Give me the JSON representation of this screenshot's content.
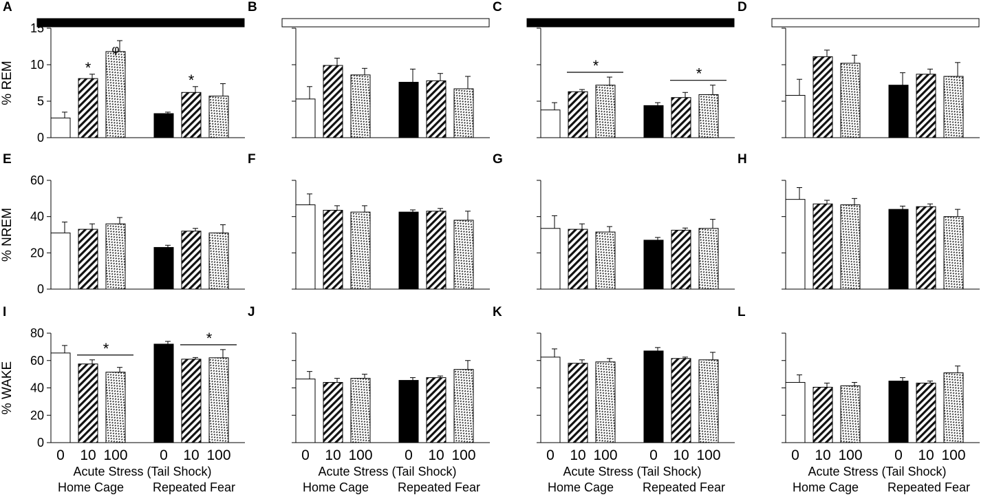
{
  "chart_data": {
    "type": "bar",
    "groups": [
      "0",
      "10",
      "100",
      "0",
      "10",
      "100"
    ],
    "group_patterns": [
      "open",
      "hatch",
      "dots",
      "solid",
      "hatch",
      "dots"
    ],
    "x_labels": {
      "doses": [
        "0",
        "10",
        "100",
        "0",
        "10",
        "100"
      ],
      "line1": "Acute Stress (Tail Shock)",
      "line2_left": "Home Cage",
      "line2_right": "Repeated Fear"
    },
    "rows": [
      {
        "ylabel": "% REM",
        "ylim": [
          0,
          15
        ],
        "yticks": [
          "0",
          "5",
          "10",
          "15"
        ]
      },
      {
        "ylabel": "% NREM",
        "ylim": [
          0,
          60
        ],
        "yticks": [
          "0",
          "20",
          "40",
          "60"
        ]
      },
      {
        "ylabel": "% WAKE",
        "ylim": [
          0,
          80
        ],
        "yticks": [
          "0",
          "20",
          "40",
          "60",
          "80"
        ]
      }
    ],
    "panels": [
      {
        "label": "A",
        "row": 0,
        "col": 0,
        "top_bar": "black",
        "values": [
          2.7,
          8.1,
          11.8,
          3.3,
          6.2,
          5.7
        ],
        "errors": [
          0.8,
          0.6,
          1.5,
          0.2,
          0.8,
          1.7
        ],
        "annotations": [
          {
            "type": "star",
            "text": "*",
            "bar": 1
          },
          {
            "type": "star",
            "text": "*",
            "bar": 4
          },
          {
            "type": "phi",
            "text": "φ",
            "bar": 2
          }
        ]
      },
      {
        "label": "B",
        "row": 0,
        "col": 1,
        "top_bar": "white",
        "values": [
          5.3,
          9.9,
          8.6,
          7.6,
          7.8,
          6.7
        ],
        "errors": [
          1.7,
          1.0,
          0.9,
          1.8,
          1.0,
          1.7
        ],
        "annotations": []
      },
      {
        "label": "C",
        "row": 0,
        "col": 2,
        "top_bar": "black",
        "values": [
          3.8,
          6.3,
          7.2,
          4.4,
          5.5,
          5.9
        ],
        "errors": [
          1.0,
          0.3,
          1.1,
          0.4,
          0.7,
          1.3
        ],
        "annotations": [
          {
            "type": "line",
            "text": "*",
            "from": 1,
            "to": 2
          },
          {
            "type": "line",
            "text": "*",
            "from": 4,
            "to": 5
          }
        ]
      },
      {
        "label": "D",
        "row": 0,
        "col": 3,
        "top_bar": "white",
        "values": [
          5.8,
          11.1,
          10.2,
          7.2,
          8.7,
          8.4
        ],
        "errors": [
          2.2,
          0.9,
          1.1,
          1.7,
          0.7,
          1.9
        ],
        "annotations": []
      },
      {
        "label": "E",
        "row": 1,
        "col": 0,
        "values": [
          31,
          33,
          36,
          23,
          32,
          31
        ],
        "errors": [
          6,
          3,
          3.5,
          1.2,
          1.5,
          4.5
        ],
        "annotations": []
      },
      {
        "label": "F",
        "row": 1,
        "col": 1,
        "values": [
          46.5,
          43.5,
          42.5,
          42.5,
          43,
          38
        ],
        "errors": [
          6,
          2.5,
          3.5,
          1.2,
          1.5,
          5
        ],
        "annotations": []
      },
      {
        "label": "G",
        "row": 1,
        "col": 2,
        "values": [
          33.5,
          33,
          31.5,
          27,
          32.5,
          33.5
        ],
        "errors": [
          7,
          3,
          3,
          1.5,
          1.2,
          5
        ],
        "annotations": []
      },
      {
        "label": "H",
        "row": 1,
        "col": 3,
        "values": [
          49.5,
          47,
          46.5,
          44,
          45.5,
          40
        ],
        "errors": [
          6.5,
          2,
          3.5,
          1.8,
          1.5,
          4
        ],
        "annotations": []
      },
      {
        "label": "I",
        "row": 2,
        "col": 0,
        "values": [
          65.5,
          57.5,
          51.5,
          72,
          61,
          62
        ],
        "errors": [
          5.5,
          3,
          3.5,
          2,
          1.2,
          6
        ],
        "annotations": [
          {
            "type": "line",
            "text": "*",
            "from": 1,
            "to": 2
          },
          {
            "type": "line",
            "text": "*",
            "from": 4,
            "to": 5
          }
        ]
      },
      {
        "label": "J",
        "row": 2,
        "col": 1,
        "values": [
          46.5,
          44,
          47,
          45.5,
          47.5,
          53.5
        ],
        "errors": [
          5.5,
          3,
          3,
          2,
          1.2,
          6.5
        ],
        "annotations": []
      },
      {
        "label": "K",
        "row": 2,
        "col": 2,
        "values": [
          62.5,
          58,
          59,
          67,
          61.5,
          60.5
        ],
        "errors": [
          6,
          2.5,
          2.5,
          2.5,
          1,
          5.5
        ],
        "annotations": []
      },
      {
        "label": "L",
        "row": 2,
        "col": 3,
        "values": [
          44,
          40.5,
          41.5,
          45,
          43.5,
          51
        ],
        "errors": [
          5.5,
          3,
          2.5,
          2.5,
          1.5,
          5
        ],
        "annotations": []
      }
    ]
  }
}
